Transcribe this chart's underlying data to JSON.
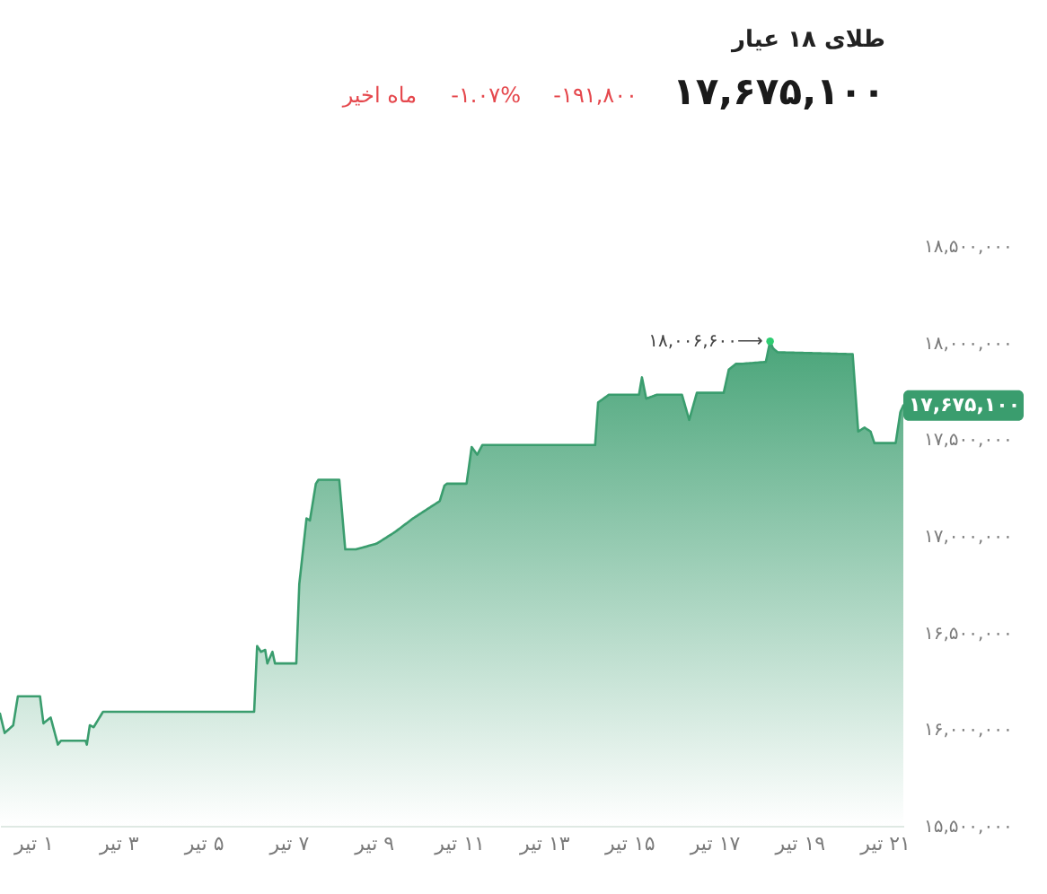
{
  "chart_data": {
    "type": "area",
    "title": "طلای ۱۸ عیار",
    "subtitle": "۱۷,۶۷۵,۱۰۰",
    "annotations": [
      "-۱۹۱,۸۰۰",
      "-۱.۰۷%",
      "ماه اخیر",
      {
        "text": "۱۸,۰۰۶,۶۰۰⟶",
        "x": 18.31,
        "y": 18006600
      },
      {
        "text": "۱۷,۶۷۵,۱۰۰",
        "x": 21.44,
        "y": 17675100
      }
    ],
    "x": [
      0.22,
      0.33,
      0.53,
      0.64,
      1.16,
      1.24,
      1.41,
      1.58,
      1.65,
      2.23,
      2.26,
      2.33,
      2.42,
      2.64,
      6.19,
      6.26,
      6.35,
      6.45,
      6.5,
      6.62,
      6.68,
      7.18,
      7.25,
      7.42,
      7.5,
      7.64,
      7.7,
      8.19,
      8.33,
      8.58,
      9.07,
      9.5,
      9.92,
      10.34,
      10.55,
      10.66,
      10.72,
      11.18,
      11.3,
      11.43,
      11.55,
      14.2,
      14.27,
      14.52,
      15.23,
      15.3,
      15.4,
      15.65,
      16.24,
      16.41,
      16.59,
      17.22,
      17.34,
      17.51,
      17.64,
      18.21,
      18.31,
      18.38,
      18.49,
      20.25,
      20.38,
      20.53,
      20.67,
      20.76,
      21.26,
      21.37,
      21.44
    ],
    "series": [
      {
        "color": "#3a9d6e",
        "values": [
          16080000,
          15980000,
          16020000,
          16170000,
          16170000,
          16030000,
          16060000,
          15920000,
          15940000,
          15940000,
          15920000,
          16020000,
          16010000,
          16090000,
          16090000,
          16430000,
          16400000,
          16410000,
          16340000,
          16400000,
          16340000,
          16340000,
          16750000,
          17090000,
          17080000,
          17270000,
          17290000,
          17290000,
          16930000,
          16930000,
          16960000,
          17020000,
          17090000,
          17150000,
          17180000,
          17260000,
          17270000,
          17270000,
          17460000,
          17420000,
          17470000,
          17470000,
          17690000,
          17730000,
          17730000,
          17820000,
          17710000,
          17730000,
          17730000,
          17600000,
          17740000,
          17740000,
          17860000,
          17890000,
          17890000,
          17900000,
          18006600,
          17970000,
          17950000,
          17940000,
          17540000,
          17560000,
          17540000,
          17480000,
          17480000,
          17640000,
          17675100
        ]
      }
    ],
    "xlim": [
      0.22,
      21.44
    ],
    "ylim": [
      15500000,
      18500000
    ],
    "xticks": [
      {
        "value": 1,
        "label": "۱ تیر"
      },
      {
        "value": 3,
        "label": "۳ تیر"
      },
      {
        "value": 5,
        "label": "۵ تیر"
      },
      {
        "value": 7,
        "label": "۷ تیر"
      },
      {
        "value": 9,
        "label": "۹ تیر"
      },
      {
        "value": 11,
        "label": "۱۱ تیر"
      },
      {
        "value": 13,
        "label": "۱۳ تیر"
      },
      {
        "value": 15,
        "label": "۱۵ تیر"
      },
      {
        "value": 17,
        "label": "۱۷ تیر"
      },
      {
        "value": 19,
        "label": "۱۹ تیر"
      },
      {
        "value": 21,
        "label": "۲۱ تیر"
      }
    ],
    "yticks": [
      {
        "value": 15500000,
        "label": "۱۵,۵۰۰,۰۰۰"
      },
      {
        "value": 16000000,
        "label": "۱۶,۰۰۰,۰۰۰"
      },
      {
        "value": 16500000,
        "label": "۱۶,۵۰۰,۰۰۰"
      },
      {
        "value": 17000000,
        "label": "۱۷,۰۰۰,۰۰۰"
      },
      {
        "value": 17500000,
        "label": "۱۷,۵۰۰,۰۰۰"
      },
      {
        "value": 18000000,
        "label": "۱۸,۰۰۰,۰۰۰"
      },
      {
        "value": 18500000,
        "label": "۱۸,۵۰۰,۰۰۰"
      }
    ]
  }
}
